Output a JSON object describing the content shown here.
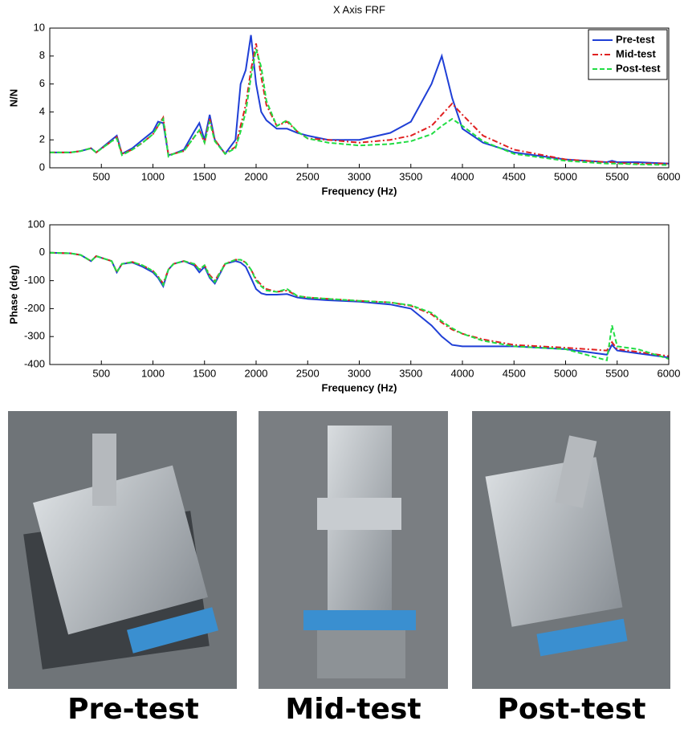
{
  "chart_data": [
    {
      "type": "line",
      "title": "X Axis FRF",
      "x_label": "Frequency (Hz)",
      "y_label": "N/N",
      "x": [
        0,
        200,
        300,
        400,
        450,
        600,
        650,
        700,
        800,
        900,
        1000,
        1050,
        1100,
        1150,
        1200,
        1300,
        1400,
        1450,
        1500,
        1550,
        1600,
        1700,
        1800,
        1850,
        1900,
        1950,
        2000,
        2050,
        2100,
        2200,
        2300,
        2400,
        2500,
        2700,
        3000,
        3300,
        3500,
        3700,
        3800,
        3900,
        4000,
        4200,
        4500,
        5000,
        5400,
        5450,
        5500,
        5700,
        6000
      ],
      "series": [
        {
          "name": "Pre-test",
          "color": "#1f3fd6",
          "dash": "solid",
          "values": [
            1.1,
            1.1,
            1.2,
            1.4,
            1.1,
            2.0,
            2.3,
            1.0,
            1.4,
            2.0,
            2.6,
            3.3,
            3.2,
            0.9,
            1.0,
            1.3,
            2.6,
            3.2,
            2.0,
            3.8,
            2.0,
            1.0,
            2.0,
            6.0,
            7.0,
            9.5,
            6.0,
            4.0,
            3.4,
            2.8,
            2.8,
            2.5,
            2.3,
            2.0,
            2.0,
            2.5,
            3.3,
            6.0,
            8.0,
            5.0,
            2.8,
            1.8,
            1.1,
            0.6,
            0.4,
            0.5,
            0.4,
            0.4,
            0.3
          ]
        },
        {
          "name": "Mid-test",
          "color": "#e02020",
          "dash": "dashdot",
          "values": [
            1.1,
            1.1,
            1.2,
            1.4,
            1.1,
            1.9,
            2.2,
            1.0,
            1.3,
            1.8,
            2.4,
            3.0,
            3.6,
            0.9,
            1.0,
            1.2,
            2.2,
            2.7,
            1.8,
            3.5,
            2.0,
            1.0,
            1.5,
            3.0,
            4.5,
            7.0,
            8.9,
            6.5,
            4.5,
            3.0,
            3.3,
            2.6,
            2.1,
            2.0,
            1.8,
            2.0,
            2.3,
            3.0,
            3.8,
            4.6,
            3.8,
            2.3,
            1.3,
            0.6,
            0.4,
            0.4,
            0.35,
            0.3,
            0.3
          ]
        },
        {
          "name": "Post-test",
          "color": "#22dd44",
          "dash": "dashed",
          "values": [
            1.1,
            1.1,
            1.2,
            1.4,
            1.1,
            1.9,
            2.1,
            0.9,
            1.3,
            1.8,
            2.4,
            3.0,
            3.5,
            0.8,
            1.0,
            1.2,
            2.2,
            2.7,
            1.8,
            3.3,
            1.9,
            1.0,
            1.4,
            2.6,
            4.0,
            6.5,
            8.5,
            7.2,
            4.8,
            3.0,
            3.4,
            2.6,
            2.1,
            1.8,
            1.6,
            1.7,
            1.9,
            2.4,
            3.0,
            3.5,
            3.0,
            1.9,
            1.0,
            0.5,
            0.3,
            0.3,
            0.3,
            0.25,
            0.2
          ]
        }
      ],
      "xlim": [
        0,
        6000
      ],
      "ylim": [
        0,
        10
      ],
      "xticks": [
        500,
        1000,
        1500,
        2000,
        2500,
        3000,
        3500,
        4000,
        4500,
        5000,
        5500,
        6000
      ],
      "yticks": [
        0,
        2,
        4,
        6,
        8,
        10
      ],
      "legend": "upper right"
    },
    {
      "type": "line",
      "x_label": "Frequency (Hz)",
      "y_label": "Phase (deg)",
      "x": [
        0,
        200,
        300,
        400,
        450,
        600,
        650,
        700,
        800,
        900,
        1000,
        1050,
        1100,
        1150,
        1200,
        1300,
        1400,
        1450,
        1500,
        1550,
        1600,
        1700,
        1800,
        1850,
        1900,
        1950,
        2000,
        2050,
        2100,
        2200,
        2300,
        2400,
        2500,
        2700,
        3000,
        3300,
        3500,
        3700,
        3800,
        3900,
        4000,
        4200,
        4500,
        5000,
        5400,
        5450,
        5500,
        5700,
        6000
      ],
      "series": [
        {
          "name": "Pre-test",
          "color": "#1f3fd6",
          "dash": "solid",
          "values": [
            0,
            -2,
            -8,
            -30,
            -12,
            -30,
            -70,
            -40,
            -35,
            -50,
            -70,
            -90,
            -120,
            -60,
            -40,
            -30,
            -45,
            -70,
            -50,
            -90,
            -110,
            -40,
            -30,
            -35,
            -50,
            -90,
            -130,
            -145,
            -150,
            -150,
            -148,
            -160,
            -165,
            -170,
            -175,
            -185,
            -200,
            -260,
            -300,
            -330,
            -335,
            -335,
            -335,
            -345,
            -365,
            -330,
            -350,
            -360,
            -375
          ]
        },
        {
          "name": "Mid-test",
          "color": "#e02020",
          "dash": "dashdot",
          "values": [
            0,
            -2,
            -8,
            -30,
            -12,
            -30,
            -68,
            -40,
            -33,
            -45,
            -65,
            -85,
            -110,
            -60,
            -40,
            -30,
            -40,
            -60,
            -45,
            -80,
            -100,
            -40,
            -25,
            -25,
            -35,
            -60,
            -95,
            -115,
            -130,
            -140,
            -135,
            -155,
            -160,
            -165,
            -172,
            -178,
            -190,
            -220,
            -250,
            -275,
            -290,
            -310,
            -330,
            -340,
            -350,
            -320,
            -345,
            -355,
            -370
          ]
        },
        {
          "name": "Post-test",
          "color": "#22dd44",
          "dash": "dashed",
          "values": [
            0,
            -2,
            -8,
            -30,
            -12,
            -30,
            -70,
            -40,
            -33,
            -45,
            -65,
            -85,
            -115,
            -60,
            -40,
            -30,
            -40,
            -60,
            -45,
            -85,
            -105,
            -40,
            -25,
            -25,
            -35,
            -60,
            -100,
            -120,
            -135,
            -140,
            -130,
            -155,
            -160,
            -165,
            -172,
            -178,
            -188,
            -215,
            -245,
            -270,
            -290,
            -315,
            -335,
            -345,
            -385,
            -260,
            -335,
            -345,
            -380
          ]
        }
      ],
      "xlim": [
        0,
        6000
      ],
      "ylim": [
        -400,
        100
      ],
      "xticks": [
        500,
        1000,
        1500,
        2000,
        2500,
        3000,
        3500,
        4000,
        4500,
        5000,
        5500,
        6000
      ],
      "yticks": [
        -400,
        -300,
        -200,
        -100,
        0,
        100
      ]
    }
  ],
  "photos": [
    {
      "caption": "Pre-test"
    },
    {
      "caption": "Mid-test"
    },
    {
      "caption": "Post-test"
    }
  ]
}
